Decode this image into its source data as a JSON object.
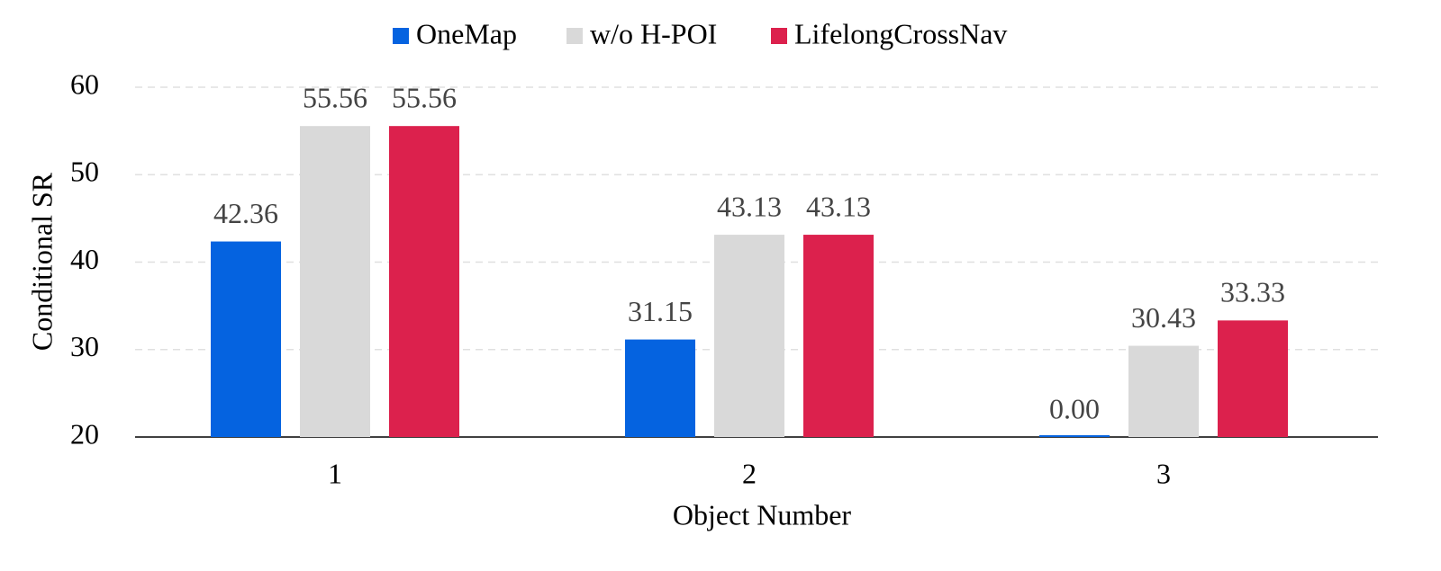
{
  "chart_data": {
    "type": "bar",
    "x_label": "Object Number",
    "y_label": "Conditional SR",
    "categories": [
      "1",
      "2",
      "3"
    ],
    "series": [
      {
        "name": "OneMap",
        "color": "#0563e0",
        "values": [
          42.36,
          31.15,
          0
        ],
        "value_labels": [
          "42.36",
          "31.15",
          "0.00"
        ]
      },
      {
        "name": "w/o H-POI",
        "color": "#d9d9d9",
        "values": [
          55.56,
          43.13,
          30.43
        ],
        "value_labels": [
          "55.56",
          "43.13",
          "30.43"
        ]
      },
      {
        "name": "LifelongCrossNav",
        "color": "#dc214d",
        "values": [
          55.56,
          43.13,
          33.33
        ],
        "value_labels": [
          "55.56",
          "43.13",
          "33.33"
        ]
      }
    ],
    "ylim": [
      20,
      60
    ],
    "yticks": [
      20,
      30,
      40,
      50,
      60
    ],
    "grid": true,
    "legend": "top"
  }
}
